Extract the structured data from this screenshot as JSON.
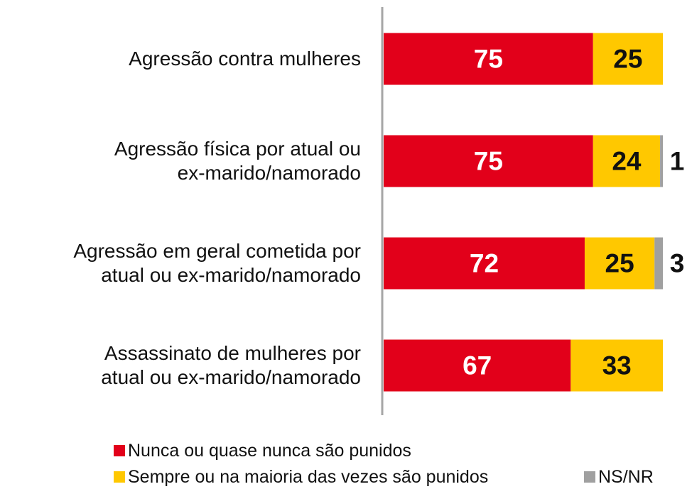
{
  "chart_data": {
    "type": "stacked-bar",
    "orientation": "horizontal",
    "categories": [
      "Agressão contra mulheres",
      "Agressão física por atual ou\nex-marido/namorado",
      "Agressão em geral cometida por\natual ou ex-marido/namorado",
      "Assassinato de mulheres por\natual ou ex-marido/namorado"
    ],
    "series": [
      {
        "name": "Nunca ou quase nunca são punidos",
        "color": "#e2001a",
        "values": [
          75,
          75,
          72,
          67
        ]
      },
      {
        "name": "Sempre ou na maioria das vezes são punidos",
        "color": "#ffc800",
        "values": [
          25,
          24,
          25,
          33
        ]
      },
      {
        "name": "NS/NR",
        "color": "#a0a0a0",
        "values": [
          null,
          1,
          3,
          null
        ]
      }
    ],
    "xlim": [
      0,
      100
    ]
  }
}
